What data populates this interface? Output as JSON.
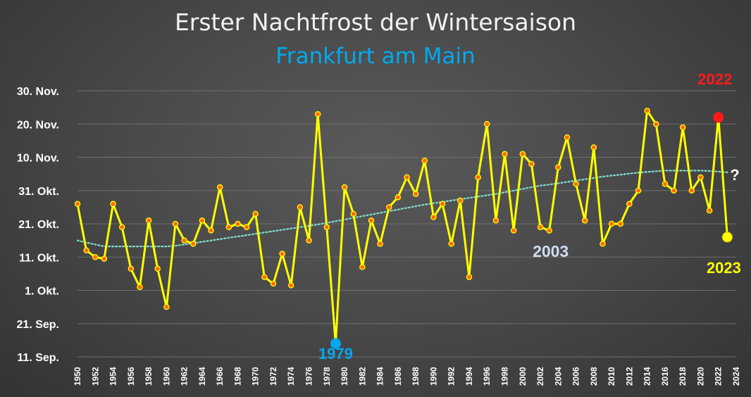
{
  "chart_data": {
    "type": "line",
    "title": "Erster Nachtfrost der Wintersaison",
    "subtitle": "Frankfurt am Main",
    "y_unit": "day of year (1 = 1 Jan); 274 = 1. Okt.",
    "yticks": [
      {
        "label": "11. Sep.",
        "value": 254
      },
      {
        "label": "21. Sep.",
        "value": 264
      },
      {
        "label": "1. Okt.",
        "value": 274
      },
      {
        "label": "11. Okt.",
        "value": 284
      },
      {
        "label": "21. Okt.",
        "value": 294
      },
      {
        "label": "31. Okt.",
        "value": 304
      },
      {
        "label": "10. Nov.",
        "value": 314
      },
      {
        "label": "20. Nov.",
        "value": 324
      },
      {
        "label": "30. Nov.",
        "value": 334
      }
    ],
    "ylim": [
      254,
      334
    ],
    "xticks": [
      "1950",
      "1952",
      "1954",
      "1956",
      "1958",
      "1960",
      "1962",
      "1964",
      "1966",
      "1968",
      "1970",
      "1972",
      "1974",
      "1976",
      "1978",
      "1980",
      "1982",
      "1984",
      "1986",
      "1988",
      "1990",
      "1992",
      "1994",
      "1996",
      "1998",
      "2000",
      "2002",
      "2004",
      "2006",
      "2008",
      "2010",
      "2012",
      "2014",
      "2016",
      "2018",
      "2020",
      "2022",
      "2024"
    ],
    "x": [
      1950,
      1951,
      1952,
      1953,
      1954,
      1955,
      1956,
      1957,
      1958,
      1959,
      1960,
      1961,
      1962,
      1963,
      1964,
      1965,
      1966,
      1967,
      1968,
      1969,
      1970,
      1971,
      1972,
      1973,
      1974,
      1975,
      1976,
      1977,
      1978,
      1979,
      1980,
      1981,
      1982,
      1983,
      1984,
      1985,
      1986,
      1987,
      1988,
      1989,
      1990,
      1991,
      1992,
      1993,
      1994,
      1995,
      1996,
      1997,
      1998,
      1999,
      2000,
      2001,
      2002,
      2003,
      2004,
      2005,
      2006,
      2007,
      2008,
      2009,
      2010,
      2011,
      2012,
      2013,
      2014,
      2015,
      2016,
      2017,
      2018,
      2019,
      2020,
      2021,
      2022,
      2023
    ],
    "series": [
      {
        "values": [
          300,
          286,
          284,
          283.5,
          300,
          293,
          280.5,
          275,
          295,
          280.5,
          269,
          294,
          289,
          288,
          295,
          292,
          305,
          293,
          294,
          293,
          297,
          278,
          276,
          285,
          275.5,
          299,
          289,
          327,
          293,
          258,
          305,
          297,
          281,
          295,
          288,
          299,
          302,
          308,
          303,
          313,
          296,
          300,
          288,
          301,
          278,
          308,
          324,
          295,
          315,
          292,
          315,
          312,
          293,
          292,
          311,
          320,
          306,
          295,
          317,
          288,
          294,
          294,
          300,
          304,
          328,
          324,
          306,
          304,
          323,
          304,
          308,
          298,
          326,
          290
        ]
      }
    ],
    "trend_values": [
      289,
      288.4,
      287.8,
      287.2,
      287.2,
      287.2,
      287.2,
      287.2,
      287.2,
      287.2,
      287.2,
      287.4,
      287.8,
      288.2,
      288.6,
      289,
      289.4,
      289.8,
      290.2,
      290.6,
      291,
      291.4,
      291.8,
      292.2,
      292.6,
      293,
      293.4,
      293.8,
      294.3,
      294.8,
      295.3,
      295.8,
      296.3,
      296.8,
      297.3,
      297.8,
      298.3,
      298.8,
      299.3,
      299.8,
      300.2,
      300.6,
      301,
      301.4,
      301.8,
      302.2,
      302.6,
      303,
      303.5,
      304,
      304.5,
      305,
      305.5,
      305.8,
      306.2,
      306.6,
      307,
      307.4,
      307.8,
      308.2,
      308.5,
      308.8,
      309.1,
      309.4,
      309.6,
      309.8,
      310,
      310,
      310,
      310,
      310,
      309.9,
      309.7,
      309.5
    ],
    "grid": true,
    "annotations": [
      {
        "id": "y2022",
        "text": "2022",
        "year": 2022,
        "color": "#ff1a1a"
      },
      {
        "id": "y2023",
        "text": "2023",
        "year": 2023,
        "color": "#ffff00"
      },
      {
        "id": "y1979",
        "text": "1979",
        "year": 1979,
        "color": "#00a8f0"
      },
      {
        "id": "y2003",
        "text": "2003",
        "color": "#cfdcf0"
      },
      {
        "id": "q",
        "text": "?",
        "color": "#ffffff"
      }
    ],
    "colors": {
      "line": "#ffff00",
      "marker_fill": "#ff6a00",
      "trend": "#7fe0d0",
      "title": "#f2f2f2",
      "subtitle": "#00aaf0",
      "highlight_2022": "#ff1a1a",
      "highlight_2023": "#ffff00",
      "highlight_1979": "#00a8f0"
    }
  }
}
